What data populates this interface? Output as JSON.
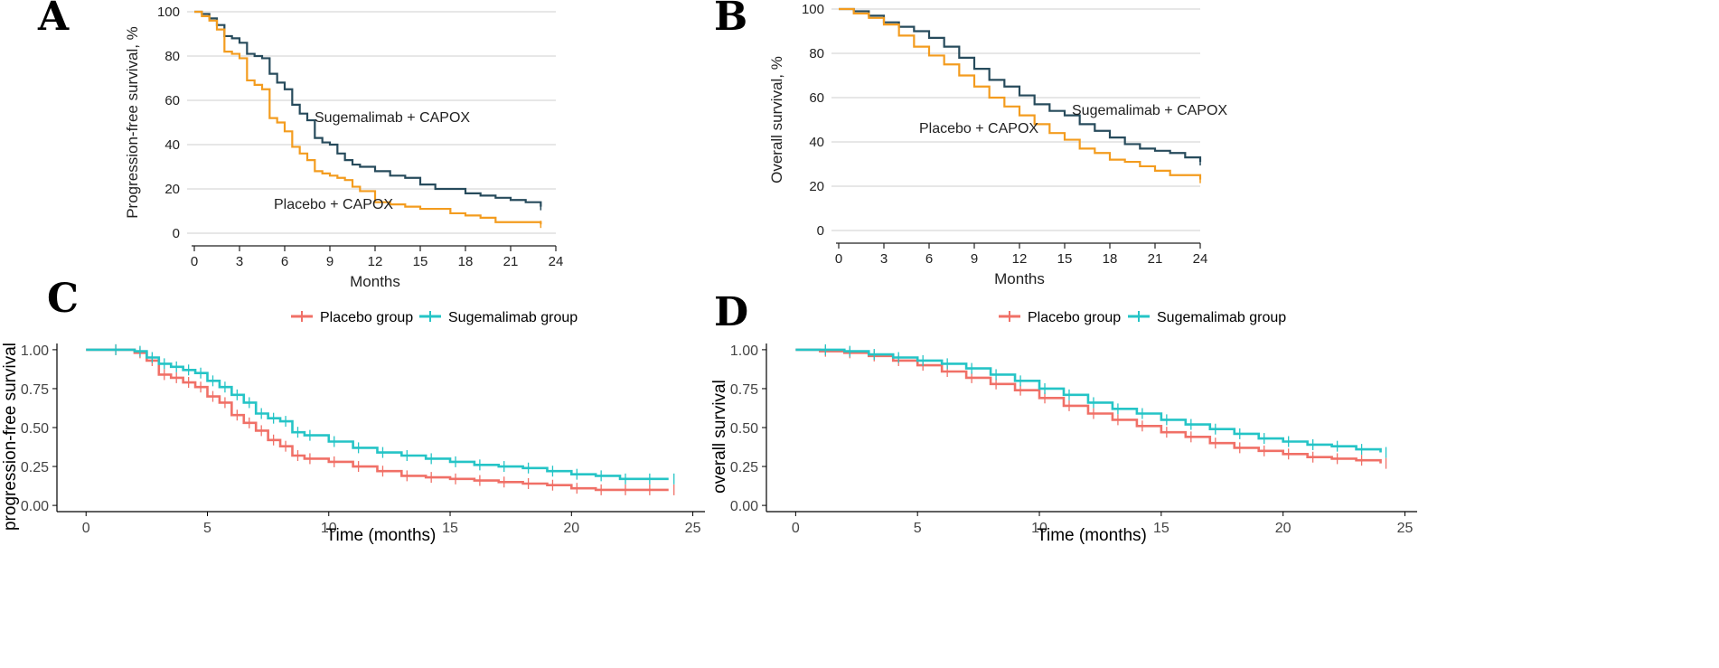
{
  "chart_data": [
    {
      "id": "A",
      "type": "line",
      "style": "jama",
      "panel_label": "A",
      "xlabel": "Months",
      "ylabel": "Progression-free survival, %",
      "xlim": [
        0,
        24
      ],
      "ylim": [
        0,
        100
      ],
      "xticks": [
        0,
        3,
        6,
        9,
        12,
        15,
        18,
        21,
        24
      ],
      "yticks": [
        0,
        20,
        40,
        60,
        80,
        100
      ],
      "series": [
        {
          "name": "Sugemalimab + CAPOX",
          "annotation": "Sugemalimab + CAPOX",
          "color": "#274b5c",
          "x": [
            0,
            0.5,
            1,
            1.5,
            2,
            2.5,
            3,
            3.5,
            4,
            4.5,
            5,
            5.5,
            6,
            6.5,
            7,
            7.5,
            8,
            8.5,
            9,
            9.5,
            10,
            10.5,
            11,
            12,
            13,
            14,
            15,
            16,
            17,
            18,
            19,
            20,
            21,
            22,
            23
          ],
          "values": [
            100,
            99,
            97,
            94,
            89,
            88,
            86,
            81,
            80,
            79,
            72,
            68,
            65,
            58,
            54,
            51,
            43,
            41,
            40,
            36,
            33,
            31,
            30,
            28,
            26,
            25,
            22,
            20,
            20,
            18,
            17,
            16,
            15,
            14,
            12
          ]
        },
        {
          "name": "Placebo + CAPOX",
          "annotation": "Placebo + CAPOX",
          "color": "#f39c1f",
          "x": [
            0,
            0.5,
            1,
            1.5,
            2,
            2.5,
            3,
            3.5,
            4,
            4.5,
            5,
            5.5,
            6,
            6.5,
            7,
            7.5,
            8,
            8.5,
            9,
            9.5,
            10,
            10.5,
            11,
            12,
            13,
            14,
            15,
            16,
            17,
            18,
            19,
            20,
            21,
            22,
            23
          ],
          "values": [
            100,
            98,
            96,
            92,
            82,
            81,
            79,
            69,
            67,
            65,
            52,
            50,
            46,
            39,
            36,
            33,
            28,
            27,
            26,
            25,
            24,
            21,
            19,
            14,
            13,
            12,
            11,
            11,
            9,
            8,
            7,
            5,
            5,
            5,
            4
          ]
        }
      ]
    },
    {
      "id": "B",
      "type": "line",
      "style": "jama",
      "panel_label": "B",
      "xlabel": "Months",
      "ylabel": "Overall survival, %",
      "xlim": [
        0,
        24
      ],
      "ylim": [
        0,
        100
      ],
      "xticks": [
        0,
        3,
        6,
        9,
        12,
        15,
        18,
        21,
        24
      ],
      "yticks": [
        0,
        20,
        40,
        60,
        80,
        100
      ],
      "series": [
        {
          "name": "Sugemalimab + CAPOX",
          "annotation": "Sugemalimab + CAPOX",
          "color": "#274b5c",
          "x": [
            0,
            1,
            2,
            3,
            4,
            5,
            6,
            7,
            8,
            9,
            10,
            11,
            12,
            13,
            14,
            15,
            16,
            17,
            18,
            19,
            20,
            21,
            22,
            23,
            24
          ],
          "values": [
            100,
            99,
            97,
            94,
            92,
            90,
            87,
            83,
            78,
            73,
            68,
            65,
            61,
            57,
            54,
            52,
            48,
            45,
            42,
            39,
            37,
            36,
            35,
            33,
            31
          ]
        },
        {
          "name": "Placebo + CAPOX",
          "annotation": "Placebo + CAPOX",
          "color": "#f39c1f",
          "x": [
            0,
            1,
            2,
            3,
            4,
            5,
            6,
            7,
            8,
            9,
            10,
            11,
            12,
            13,
            14,
            15,
            16,
            17,
            18,
            19,
            20,
            21,
            22,
            23,
            24
          ],
          "values": [
            100,
            98,
            96,
            93,
            88,
            83,
            79,
            75,
            70,
            65,
            60,
            56,
            52,
            48,
            44,
            41,
            37,
            35,
            32,
            31,
            29,
            27,
            25,
            25,
            23
          ]
        }
      ]
    },
    {
      "id": "C",
      "type": "line",
      "style": "ggplot",
      "panel_label": "C",
      "xlabel": "Time (months)",
      "ylabel": "progression-free survival",
      "xlim": [
        -1.2,
        25.5
      ],
      "ylim": [
        -0.04,
        1.04
      ],
      "xticks": [
        0,
        5,
        10,
        15,
        20,
        25
      ],
      "yticks": [
        0.0,
        0.25,
        0.5,
        0.75,
        1.0
      ],
      "ytick_labels": [
        "0.00",
        "0.25",
        "0.50",
        "0.75",
        "1.00"
      ],
      "legend": [
        "Placebo group",
        "Sugemalimab group"
      ],
      "series": [
        {
          "name": "Placebo group",
          "color": "#f07067",
          "x": [
            0,
            1,
            2,
            2.5,
            3,
            3.5,
            4,
            4.5,
            5,
            5.5,
            6,
            6.5,
            7,
            7.5,
            8,
            8.5,
            9,
            10,
            11,
            12,
            13,
            14,
            15,
            16,
            17,
            18,
            19,
            20,
            21,
            22,
            23,
            24
          ],
          "values": [
            1.0,
            1.0,
            0.98,
            0.93,
            0.84,
            0.82,
            0.79,
            0.76,
            0.7,
            0.66,
            0.58,
            0.53,
            0.48,
            0.42,
            0.38,
            0.32,
            0.3,
            0.28,
            0.25,
            0.22,
            0.19,
            0.18,
            0.17,
            0.16,
            0.15,
            0.14,
            0.13,
            0.11,
            0.1,
            0.1,
            0.1,
            0.1
          ]
        },
        {
          "name": "Sugemalimab group",
          "color": "#25c4c6",
          "x": [
            0,
            1,
            2,
            2.5,
            3,
            3.5,
            4,
            4.5,
            5,
            5.5,
            6,
            6.5,
            7,
            7.5,
            8,
            8.5,
            9,
            10,
            11,
            12,
            13,
            14,
            15,
            16,
            17,
            18,
            19,
            20,
            21,
            22,
            23,
            24
          ],
          "values": [
            1.0,
            1.0,
            0.99,
            0.95,
            0.91,
            0.89,
            0.87,
            0.85,
            0.8,
            0.76,
            0.71,
            0.66,
            0.59,
            0.56,
            0.54,
            0.47,
            0.45,
            0.41,
            0.37,
            0.34,
            0.32,
            0.3,
            0.28,
            0.26,
            0.25,
            0.24,
            0.22,
            0.2,
            0.19,
            0.17,
            0.17,
            0.17
          ]
        }
      ]
    },
    {
      "id": "D",
      "type": "line",
      "style": "ggplot",
      "panel_label": "D",
      "xlabel": "Time (months)",
      "ylabel": "overall survival",
      "xlim": [
        -1.2,
        25.5
      ],
      "ylim": [
        -0.04,
        1.04
      ],
      "xticks": [
        0,
        5,
        10,
        15,
        20,
        25
      ],
      "yticks": [
        0.0,
        0.25,
        0.5,
        0.75,
        1.0
      ],
      "ytick_labels": [
        "0.00",
        "0.25",
        "0.50",
        "0.75",
        "1.00"
      ],
      "legend": [
        "Placebo group",
        "Sugemalimab group"
      ],
      "series": [
        {
          "name": "Placebo group",
          "color": "#f07067",
          "x": [
            0,
            1,
            2,
            3,
            4,
            5,
            6,
            7,
            8,
            9,
            10,
            11,
            12,
            13,
            14,
            15,
            16,
            17,
            18,
            19,
            20,
            21,
            22,
            23,
            24
          ],
          "values": [
            1.0,
            0.99,
            0.98,
            0.96,
            0.93,
            0.9,
            0.86,
            0.82,
            0.78,
            0.74,
            0.69,
            0.64,
            0.59,
            0.55,
            0.51,
            0.47,
            0.44,
            0.4,
            0.37,
            0.35,
            0.33,
            0.31,
            0.3,
            0.29,
            0.27
          ]
        },
        {
          "name": "Sugemalimab group",
          "color": "#25c4c6",
          "x": [
            0,
            1,
            2,
            3,
            4,
            5,
            6,
            7,
            8,
            9,
            10,
            11,
            12,
            13,
            14,
            15,
            16,
            17,
            18,
            19,
            20,
            21,
            22,
            23,
            24
          ],
          "values": [
            1.0,
            1.0,
            0.99,
            0.97,
            0.95,
            0.93,
            0.91,
            0.88,
            0.84,
            0.8,
            0.75,
            0.71,
            0.66,
            0.62,
            0.59,
            0.55,
            0.52,
            0.49,
            0.46,
            0.43,
            0.41,
            0.39,
            0.38,
            0.36,
            0.34
          ]
        }
      ]
    }
  ]
}
